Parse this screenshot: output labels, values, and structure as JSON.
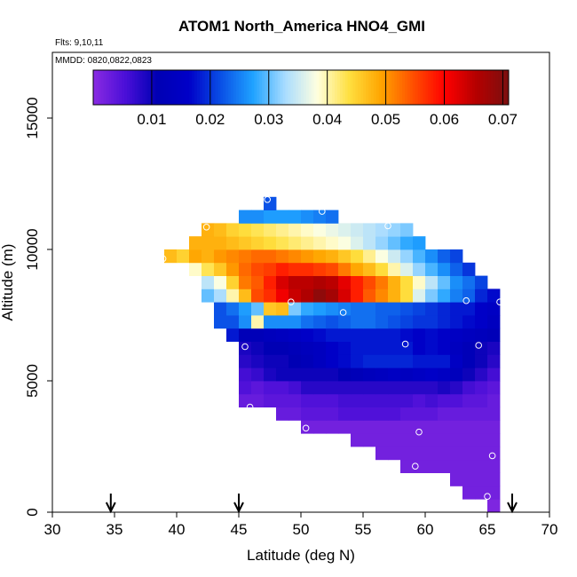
{
  "chart_data": {
    "type": "heatmap",
    "title": "ATOM1 North_America HNO4_GMI",
    "subtitle_flights": "Flts: 9,10,11",
    "subtitle_dates": "MMDD: 0820,0822,0823",
    "xlabel": "Latitude (deg N)",
    "ylabel": "Altitude (m)",
    "xlim": [
      30,
      70
    ],
    "ylim": [
      0,
      17500
    ],
    "x_ticks": [
      30,
      35,
      40,
      45,
      50,
      55,
      60,
      65,
      70
    ],
    "y_ticks": [
      0,
      5000,
      10000,
      15000
    ],
    "colorbar": {
      "range": [
        0,
        0.071
      ],
      "tick_values": [
        0.01,
        0.02,
        0.03,
        0.04,
        0.05,
        0.06,
        0.07
      ],
      "tick_labels": [
        "0.01",
        "0.02",
        "0.03",
        "0.04",
        "0.05",
        "0.06",
        "0.07"
      ],
      "colors": [
        "#8a2be2",
        "#4b0fd8",
        "#0000b4",
        "#0000c8",
        "#0a50e6",
        "#1fa2ff",
        "#a8dcff",
        "#ffffe0",
        "#ffe040",
        "#ffa500",
        "#ff5000",
        "#ff0000",
        "#b40000",
        "#7a1010"
      ]
    },
    "cell_width_deg": 1,
    "cell_height_m": 500,
    "series": [
      {
        "alt": 250,
        "lat_start": 65,
        "values": [
          0.001
        ]
      },
      {
        "alt": 750,
        "lat_start": 63,
        "values": [
          0.002,
          0.002,
          0.002
        ]
      },
      {
        "alt": 1250,
        "lat_start": 62,
        "values": [
          0.002,
          0.002,
          0.002,
          0.002
        ]
      },
      {
        "alt": 1750,
        "lat_start": 58,
        "values": [
          0.002,
          0.002,
          0.002,
          0.002,
          0.002,
          0.002,
          0.002,
          0.002
        ]
      },
      {
        "alt": 2250,
        "lat_start": 56,
        "values": [
          0.002,
          0.002,
          0.002,
          0.002,
          0.002,
          0.002,
          0.002,
          0.002,
          0.002,
          0.002
        ]
      },
      {
        "alt": 2750,
        "lat_start": 54,
        "values": [
          0.002,
          0.002,
          0.002,
          0.002,
          0.002,
          0.002,
          0.002,
          0.002,
          0.002,
          0.002,
          0.002,
          0.002
        ]
      },
      {
        "alt": 3250,
        "lat_start": 50,
        "values": [
          0.002,
          0.002,
          0.002,
          0.002,
          0.002,
          0.002,
          0.002,
          0.002,
          0.002,
          0.002,
          0.002,
          0.002,
          0.002,
          0.002,
          0.002,
          0.002
        ]
      },
      {
        "alt": 3750,
        "lat_start": 48,
        "values": [
          0.003,
          0.003,
          0.004,
          0.004,
          0.004,
          0.005,
          0.005,
          0.005,
          0.005,
          0.005,
          0.004,
          0.004,
          0.004,
          0.003,
          0.003,
          0.003,
          0.003,
          0.003
        ]
      },
      {
        "alt": 4250,
        "lat_start": 45,
        "values": [
          0.003,
          0.003,
          0.004,
          0.004,
          0.004,
          0.005,
          0.005,
          0.005,
          0.006,
          0.006,
          0.006,
          0.006,
          0.006,
          0.006,
          0.005,
          0.006,
          0.005,
          0.005,
          0.004,
          0.004,
          0.003
        ]
      },
      {
        "alt": 4750,
        "lat_start": 45,
        "values": [
          0.005,
          0.004,
          0.005,
          0.005,
          0.006,
          0.008,
          0.008,
          0.008,
          0.008,
          0.008,
          0.008,
          0.008,
          0.008,
          0.008,
          0.008,
          0.008,
          0.009,
          0.008,
          0.006,
          0.005,
          0.004
        ]
      },
      {
        "alt": 5250,
        "lat_start": 45,
        "values": [
          0.006,
          0.007,
          0.009,
          0.01,
          0.01,
          0.01,
          0.01,
          0.01,
          0.011,
          0.012,
          0.013,
          0.014,
          0.015,
          0.014,
          0.015,
          0.016,
          0.015,
          0.013,
          0.01,
          0.008,
          0.006
        ]
      },
      {
        "alt": 5750,
        "lat_start": 45,
        "values": [
          0.008,
          0.009,
          0.01,
          0.01,
          0.011,
          0.012,
          0.014,
          0.016,
          0.017,
          0.018,
          0.019,
          0.019,
          0.019,
          0.019,
          0.018,
          0.018,
          0.018,
          0.015,
          0.012,
          0.01,
          0.008
        ]
      },
      {
        "alt": 6250,
        "lat_start": 45,
        "values": [
          0.009,
          0.01,
          0.011,
          0.011,
          0.012,
          0.013,
          0.014,
          0.016,
          0.017,
          0.018,
          0.018,
          0.018,
          0.018,
          0.018,
          0.016,
          0.017,
          0.016,
          0.014,
          0.012,
          0.01,
          0.009
        ]
      },
      {
        "alt": 6750,
        "lat_start": 44,
        "values": [
          0.018,
          0.012,
          0.012,
          0.013,
          0.014,
          0.015,
          0.016,
          0.017,
          0.018,
          0.018,
          0.018,
          0.018,
          0.018,
          0.018,
          0.017,
          0.016,
          0.017,
          0.016,
          0.015,
          0.014,
          0.013,
          0.012
        ]
      },
      {
        "alt": 7250,
        "lat_start": 43,
        "values": [
          0.022,
          0.022,
          0.026,
          0.04,
          0.026,
          0.026,
          0.026,
          0.024,
          0.023,
          0.022,
          0.023,
          0.024,
          0.024,
          0.023,
          0.022,
          0.021,
          0.02,
          0.02,
          0.019,
          0.018,
          0.017,
          0.016,
          0.014
        ]
      },
      {
        "alt": 7750,
        "lat_start": 43,
        "values": [
          0.022,
          0.024,
          0.027,
          0.03,
          0.046,
          0.047,
          0.031,
          0.028,
          0.027,
          0.026,
          0.025,
          0.024,
          0.024,
          0.023,
          0.023,
          0.022,
          0.021,
          0.02,
          0.019,
          0.018,
          0.018,
          0.016,
          0.015
        ]
      },
      {
        "alt": 8250,
        "lat_start": 42,
        "values": [
          0.03,
          0.033,
          0.04,
          0.047,
          0.055,
          0.057,
          0.061,
          0.064,
          0.066,
          0.069,
          0.067,
          0.063,
          0.058,
          0.054,
          0.051,
          0.048,
          0.044,
          0.036,
          0.031,
          0.028,
          0.025,
          0.023,
          0.019,
          0.017
        ]
      },
      {
        "alt": 8750,
        "lat_start": 42,
        "values": [
          0.034,
          0.038,
          0.045,
          0.052,
          0.054,
          0.058,
          0.063,
          0.065,
          0.065,
          0.066,
          0.065,
          0.062,
          0.058,
          0.055,
          0.052,
          0.048,
          0.044,
          0.039,
          0.034,
          0.03,
          0.026,
          0.024,
          0.021
        ]
      },
      {
        "alt": 9250,
        "lat_start": 41,
        "values": [
          0.039,
          0.043,
          0.046,
          0.05,
          0.053,
          0.055,
          0.056,
          0.058,
          0.057,
          0.057,
          0.056,
          0.055,
          0.052,
          0.049,
          0.047,
          0.044,
          0.04,
          0.036,
          0.032,
          0.029,
          0.026,
          0.023,
          0.02
        ]
      },
      {
        "alt": 9750,
        "lat_start": 39,
        "values": [
          0.047,
          0.045,
          0.049,
          0.048,
          0.05,
          0.051,
          0.052,
          0.053,
          0.053,
          0.052,
          0.051,
          0.05,
          0.049,
          0.048,
          0.046,
          0.044,
          0.041,
          0.038,
          0.035,
          0.032,
          0.029,
          0.026,
          0.023,
          0.021
        ]
      },
      {
        "alt": 10250,
        "lat_start": 41,
        "values": [
          0.048,
          0.048,
          0.048,
          0.047,
          0.046,
          0.045,
          0.044,
          0.043,
          0.042,
          0.041,
          0.04,
          0.039,
          0.038,
          0.036,
          0.034,
          0.032,
          0.03,
          0.028,
          0.027
        ]
      },
      {
        "alt": 10750,
        "lat_start": 42,
        "values": [
          0.048,
          0.047,
          0.045,
          0.044,
          0.043,
          0.042,
          0.041,
          0.04,
          0.039,
          0.038,
          0.037,
          0.036,
          0.035,
          0.034,
          0.033,
          0.032,
          0.031
        ]
      },
      {
        "alt": 11250,
        "lat_start": 45,
        "values": [
          0.026,
          0.026,
          0.027,
          0.027,
          0.027,
          0.026,
          0.025,
          0.024
        ]
      },
      {
        "alt": 11750,
        "lat_start": 47,
        "values": [
          0.022
        ]
      }
    ],
    "flight_points": [
      {
        "lat": 47.3,
        "alt": 11900
      },
      {
        "lat": 51.7,
        "alt": 11450
      },
      {
        "lat": 57.0,
        "alt": 10900
      },
      {
        "lat": 42.4,
        "alt": 10850
      },
      {
        "lat": 38.9,
        "alt": 9650
      },
      {
        "lat": 49.2,
        "alt": 8000
      },
      {
        "lat": 53.4,
        "alt": 7600
      },
      {
        "lat": 63.3,
        "alt": 8050
      },
      {
        "lat": 66.0,
        "alt": 8000
      },
      {
        "lat": 45.5,
        "alt": 6300
      },
      {
        "lat": 58.4,
        "alt": 6400
      },
      {
        "lat": 64.3,
        "alt": 6350
      },
      {
        "lat": 45.9,
        "alt": 4000
      },
      {
        "lat": 50.4,
        "alt": 3200
      },
      {
        "lat": 59.5,
        "alt": 3050
      },
      {
        "lat": 65.4,
        "alt": 2150
      },
      {
        "lat": 59.2,
        "alt": 1750
      },
      {
        "lat": 65.0,
        "alt": 600
      }
    ],
    "arrow_markers_lat": [
      34.7,
      45.0,
      67.0
    ]
  }
}
